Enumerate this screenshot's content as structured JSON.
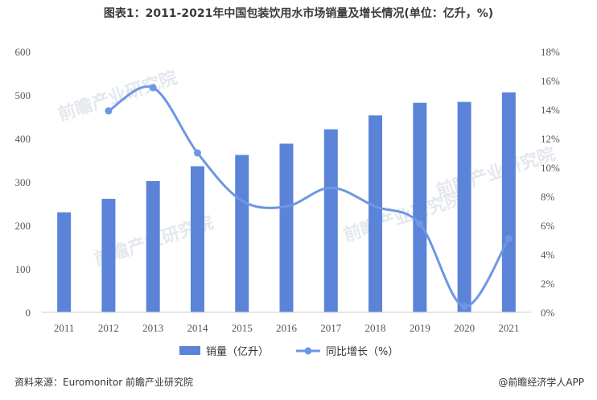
{
  "header": {
    "title": "图表1：2011-2021年中国包装饮用水市场销量及增长情况(单位：亿升，%)"
  },
  "footer": {
    "source": "资料来源：Euromonitor 前瞻产业研究院",
    "brand": "@前瞻经济学人APP"
  },
  "watermark": "前瞻产业研究院",
  "colors": {
    "bar": "#5b84d9",
    "line": "#6e96e3",
    "axis_text": "#555555"
  },
  "chart_data": {
    "type": "bar",
    "categories": [
      "2011",
      "2012",
      "2013",
      "2014",
      "2015",
      "2016",
      "2017",
      "2018",
      "2019",
      "2020",
      "2021"
    ],
    "series": [
      {
        "name": "销量（亿升）",
        "type": "bar",
        "axis": "left",
        "values": [
          230,
          261,
          302,
          336,
          362,
          388,
          421,
          453,
          482,
          484,
          506
        ]
      },
      {
        "name": "同比增长（%）",
        "type": "line",
        "axis": "right",
        "values": [
          null,
          13.9,
          15.5,
          11.0,
          7.7,
          7.3,
          8.6,
          7.3,
          6.1,
          0.4,
          5.1
        ]
      }
    ],
    "ylim": [
      0,
      600
    ],
    "yticks": [
      0,
      100,
      200,
      300,
      400,
      500,
      600
    ],
    "y2lim": [
      0,
      18
    ],
    "y2ticks": [
      "0%",
      "2%",
      "4%",
      "6%",
      "8%",
      "10%",
      "12%",
      "14%",
      "16%",
      "18%"
    ],
    "legend_position": "bottom"
  }
}
